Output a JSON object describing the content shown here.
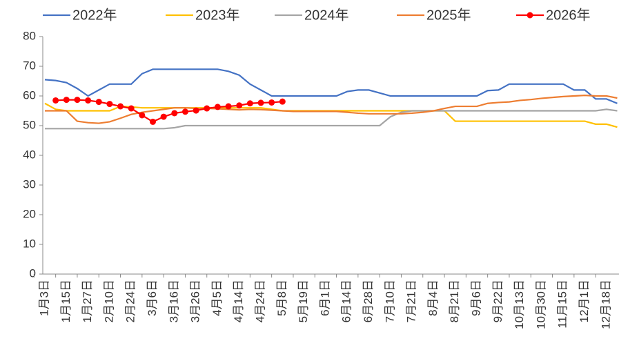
{
  "chart_data": {
    "type": "line",
    "categories": [
      "1月3日",
      null,
      "1月15日",
      null,
      "1月27日",
      null,
      "2月10日",
      null,
      "2月24日",
      null,
      "3月6日",
      null,
      "3月16日",
      null,
      "3月26日",
      null,
      "4月5日",
      null,
      "4月14日",
      null,
      "4月24日",
      null,
      "5月8日",
      null,
      "5月19日",
      null,
      "6月1日",
      null,
      "6月14日",
      null,
      "6月28日",
      null,
      "7月10日",
      null,
      "7月21日",
      null,
      "8月4日",
      null,
      "8月21日",
      null,
      "9月6日",
      null,
      "9月22日",
      null,
      "10月13日",
      null,
      "10月30日",
      null,
      "11月15日",
      null,
      "12月1日",
      null,
      "12月18日",
      null
    ],
    "ylim": [
      0,
      80
    ],
    "yticks": [
      0,
      10,
      20,
      30,
      40,
      50,
      60,
      70,
      80
    ],
    "series": [
      {
        "name": "2022年",
        "color": "#4472c4",
        "marker": false,
        "values": [
          65.5,
          65.2,
          64.5,
          62.5,
          60,
          62,
          64,
          64,
          64,
          67.5,
          69,
          69,
          69,
          69,
          69,
          69,
          69,
          68.3,
          67,
          64,
          62,
          60,
          60,
          60,
          60,
          60,
          60,
          60,
          61.5,
          62,
          62,
          61,
          60,
          60,
          60,
          60,
          60,
          60,
          60,
          60,
          60,
          61.8,
          62,
          64,
          64,
          64,
          64,
          64,
          64,
          62,
          62,
          59,
          59,
          57.5
        ]
      },
      {
        "name": "2023年",
        "color": "#ffc000",
        "marker": false,
        "values": [
          57.5,
          55.5,
          55,
          55,
          55,
          55,
          55,
          56.5,
          56.3,
          56,
          56,
          56,
          56,
          56,
          56,
          56,
          56,
          56,
          56,
          56,
          56,
          55.5,
          55,
          55,
          55,
          55,
          55,
          55,
          55,
          55,
          55,
          55,
          55,
          55,
          55,
          55,
          55,
          55,
          51.5,
          51.5,
          51.5,
          51.5,
          51.5,
          51.5,
          51.5,
          51.5,
          51.5,
          51.5,
          51.5,
          51.5,
          51.5,
          50.5,
          50.5,
          49.5
        ]
      },
      {
        "name": "2024年",
        "color": "#a5a5a5",
        "marker": false,
        "values": [
          49,
          49,
          49,
          49,
          49,
          49,
          49,
          49,
          49,
          49,
          49,
          49,
          49.3,
          50,
          50,
          50,
          50,
          50,
          50,
          50,
          50,
          50,
          50,
          50,
          50,
          50,
          50,
          50,
          50,
          50,
          50,
          50,
          53,
          54.5,
          55,
          55,
          55,
          55,
          55,
          55,
          55,
          55,
          55,
          55,
          55,
          55,
          55,
          55,
          55,
          55,
          55,
          55,
          55.5,
          55
        ]
      },
      {
        "name": "2025年",
        "color": "#ed7d31",
        "marker": false,
        "values": [
          55,
          55,
          55,
          51.5,
          51,
          50.8,
          51.3,
          52.5,
          53.8,
          54.5,
          55,
          55.5,
          56,
          56,
          55.8,
          55.8,
          55.7,
          55.5,
          55.3,
          55.5,
          55.4,
          55.2,
          55,
          54.8,
          54.8,
          54.8,
          54.8,
          54.8,
          54.5,
          54.2,
          54,
          54,
          54,
          54,
          54.2,
          54.5,
          55,
          55.8,
          56.5,
          56.5,
          56.5,
          57.5,
          57.8,
          58,
          58.5,
          58.8,
          59.2,
          59.5,
          59.8,
          60,
          60.2,
          60,
          60,
          59.3
        ]
      },
      {
        "name": "2026年",
        "color": "#ff0000",
        "marker": true,
        "values": [
          null,
          58.5,
          58.7,
          58.7,
          58.5,
          58,
          57.3,
          56.5,
          55.8,
          53.5,
          51.3,
          53,
          54.2,
          54.7,
          55.1,
          55.8,
          56.3,
          56.5,
          56.8,
          57.5,
          57.7,
          57.8,
          58.1,
          null,
          null,
          null,
          null,
          null,
          null,
          null,
          null,
          null,
          null,
          null,
          null,
          null,
          null,
          null,
          null,
          null,
          null,
          null,
          null,
          null,
          null,
          null,
          null,
          null,
          null,
          null,
          null,
          null,
          null,
          null
        ]
      }
    ]
  }
}
